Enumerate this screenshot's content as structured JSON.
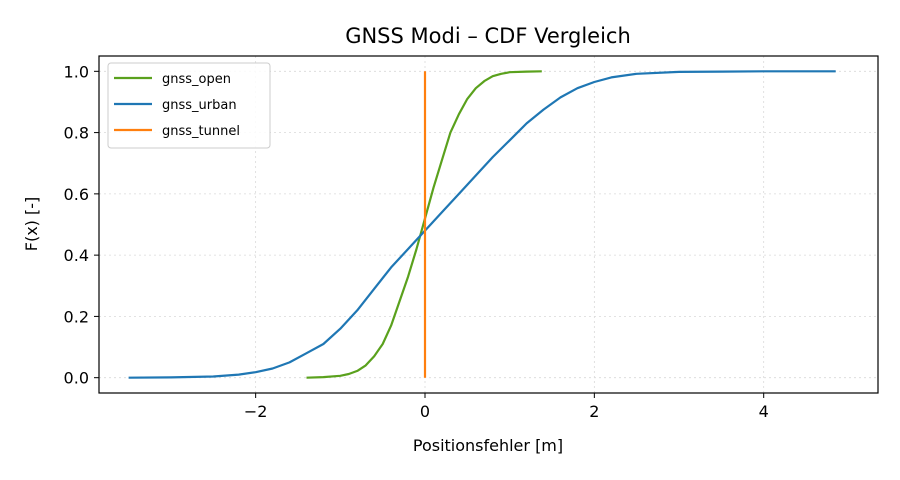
{
  "chart_data": {
    "type": "line",
    "title": "GNSS Modi – CDF Vergleich",
    "xlabel": "Positionsfehler [m]",
    "ylabel": "F(x) [-]",
    "xlim": [
      -3.85,
      5.35
    ],
    "ylim": [
      -0.05,
      1.05
    ],
    "xticks": [
      -2,
      0,
      2,
      4
    ],
    "xtick_labels": [
      "−2",
      "0",
      "2",
      "4"
    ],
    "yticks": [
      0.0,
      0.2,
      0.4,
      0.6,
      0.8,
      1.0
    ],
    "ytick_labels": [
      "0.0",
      "0.2",
      "0.4",
      "0.6",
      "0.8",
      "1.0"
    ],
    "grid": true,
    "legend_position": "top-left",
    "series": [
      {
        "name": "gnss_open",
        "color": "#5aa11d",
        "x": [
          -1.4,
          -1.2,
          -1.0,
          -0.9,
          -0.8,
          -0.7,
          -0.6,
          -0.5,
          -0.4,
          -0.3,
          -0.2,
          -0.1,
          0.0,
          0.1,
          0.2,
          0.3,
          0.4,
          0.5,
          0.6,
          0.7,
          0.8,
          0.9,
          1.0,
          1.2,
          1.38
        ],
        "y": [
          0.0,
          0.002,
          0.006,
          0.012,
          0.022,
          0.04,
          0.07,
          0.11,
          0.17,
          0.25,
          0.33,
          0.42,
          0.52,
          0.62,
          0.71,
          0.8,
          0.86,
          0.91,
          0.945,
          0.968,
          0.984,
          0.992,
          0.997,
          0.999,
          1.0
        ]
      },
      {
        "name": "gnss_urban",
        "color": "#1f77b4",
        "x": [
          -3.5,
          -3.0,
          -2.5,
          -2.2,
          -2.0,
          -1.8,
          -1.6,
          -1.4,
          -1.2,
          -1.0,
          -0.8,
          -0.6,
          -0.4,
          -0.2,
          0.0,
          0.2,
          0.4,
          0.6,
          0.8,
          1.0,
          1.2,
          1.4,
          1.6,
          1.8,
          2.0,
          2.2,
          2.5,
          3.0,
          3.5,
          4.0,
          4.85
        ],
        "y": [
          0.0,
          0.001,
          0.004,
          0.01,
          0.018,
          0.03,
          0.05,
          0.08,
          0.11,
          0.16,
          0.22,
          0.29,
          0.36,
          0.42,
          0.48,
          0.54,
          0.6,
          0.66,
          0.72,
          0.775,
          0.83,
          0.875,
          0.915,
          0.945,
          0.965,
          0.98,
          0.992,
          0.998,
          0.999,
          1.0,
          1.0
        ]
      },
      {
        "name": "gnss_tunnel",
        "color": "#ff7f0e",
        "x": [
          0.0,
          0.0
        ],
        "y": [
          0.0,
          1.0
        ]
      }
    ]
  }
}
